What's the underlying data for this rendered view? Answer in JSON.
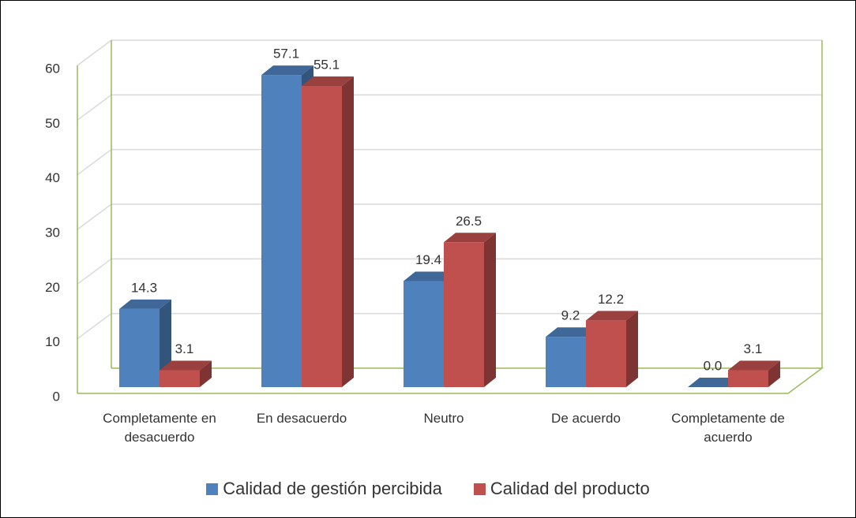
{
  "chart_data": {
    "type": "bar3d",
    "categories": [
      "Completamente en desacuerdo",
      "En desacuerdo",
      "Neutro",
      "De acuerdo",
      "Completamente de acuerdo"
    ],
    "series": [
      {
        "name": "Calidad de gestión percibida",
        "color": "#4f81bd",
        "values": [
          14.3,
          57.1,
          19.4,
          9.2,
          0.0
        ],
        "value_labels": [
          "14.3",
          "57.1",
          "19.4",
          "9.2",
          "0.0"
        ]
      },
      {
        "name": "Calidad del producto",
        "color": "#c0504d",
        "values": [
          3.1,
          55.1,
          26.5,
          12.2,
          3.1
        ],
        "value_labels": [
          "3.1",
          "55.1",
          "26.5",
          "12.2",
          "3.1"
        ]
      }
    ],
    "ylim": [
      0,
      60
    ],
    "yticks": [
      0,
      10,
      20,
      30,
      40,
      50,
      60
    ],
    "grid": true,
    "legend": "bottom"
  }
}
